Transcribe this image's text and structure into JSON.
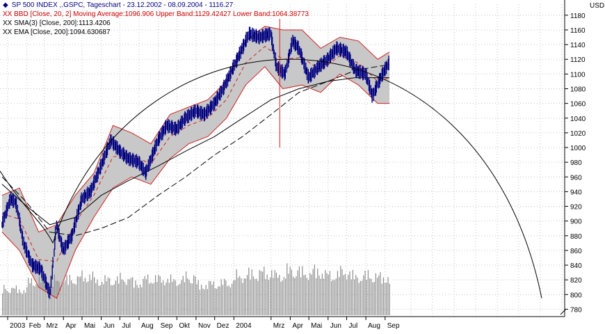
{
  "legend": [
    {
      "mark": "◆",
      "text": "SP 500 INDEX ,.GSPC, Tageschart - 23.12.2002 - 08.09.2004 - 1116.27"
    },
    {
      "mark": "XX",
      "text": "BBD [Close, 20, 2] Moving Average:1096.906 Upper Band:1129.42427 Lower Band:1064.38773"
    },
    {
      "mark": "XX",
      "text": "SMA(3) [Close, 200]:1113.4206"
    },
    {
      "mark": "XX",
      "text": "EMA [Close, 200]:1094.630687"
    }
  ],
  "currency": "USD",
  "colors": {
    "price": "#000080",
    "bands": "#d02020",
    "band_fill": "#c8c8c8",
    "volume": "#8c8c8c",
    "avg": "#000000",
    "grid": "#c0c0c0"
  },
  "chart_data": {
    "type": "line",
    "title": "SP 500 INDEX ,.GSPC, Tageschart - 23.12.2002 - 08.09.2004 - 1116.27",
    "ylabel": "USD",
    "ylim": [
      770,
      1195
    ],
    "yticks": [
      780,
      800,
      820,
      840,
      860,
      880,
      900,
      920,
      940,
      960,
      980,
      1000,
      1020,
      1040,
      1060,
      1080,
      1100,
      1120,
      1140,
      1160,
      1180
    ],
    "x_labels": [
      "2003",
      "Feb",
      "Mrz",
      "Apr",
      "Mai",
      "Jun",
      "Jul",
      "Aug",
      "Sep",
      "Okt",
      "Nov",
      "Dez",
      "2004",
      "Mrz",
      "Apr",
      "Mai",
      "Jun",
      "Jul",
      "Aug",
      "Sep"
    ],
    "x_range": [
      "2002-12-23",
      "2004-09-08"
    ],
    "grid": true,
    "series": [
      {
        "name": "SP 500 INDEX ,.GSPC",
        "dates": [
          "2002-12-23",
          "2003-01-06",
          "2003-01-15",
          "2003-01-27",
          "2003-02-10",
          "2003-02-24",
          "2003-03-11",
          "2003-03-21",
          "2003-04-01",
          "2003-04-15",
          "2003-05-01",
          "2003-05-15",
          "2003-06-01",
          "2003-06-17",
          "2003-07-01",
          "2003-07-15",
          "2003-08-01",
          "2003-08-12",
          "2003-09-01",
          "2003-09-15",
          "2003-10-01",
          "2003-10-15",
          "2003-11-01",
          "2003-11-15",
          "2003-12-01",
          "2003-12-15",
          "2004-01-01",
          "2004-01-15",
          "2004-01-26",
          "2004-02-11",
          "2004-03-01",
          "2004-03-10",
          "2004-03-24",
          "2004-04-05",
          "2004-04-15",
          "2004-05-01",
          "2004-05-17",
          "2004-06-01",
          "2004-06-15",
          "2004-07-01",
          "2004-07-15",
          "2004-08-01",
          "2004-08-12",
          "2004-08-25",
          "2004-09-08"
        ],
        "values": [
          895,
          930,
          925,
          870,
          840,
          835,
          800,
          895,
          860,
          880,
          930,
          940,
          975,
          1010,
          995,
          985,
          980,
          965,
          1010,
          1030,
          1025,
          1040,
          1050,
          1045,
          1060,
          1080,
          1110,
          1135,
          1155,
          1150,
          1155,
          1110,
          1100,
          1145,
          1135,
          1095,
          1110,
          1120,
          1135,
          1130,
          1105,
          1100,
          1070,
          1095,
          1116
        ]
      },
      {
        "name": "Upper Band",
        "dates": [
          "2002-12-23",
          "2003-01-20",
          "2003-02-20",
          "2003-03-21",
          "2003-04-20",
          "2003-05-20",
          "2003-06-20",
          "2003-07-20",
          "2003-08-20",
          "2003-09-20",
          "2003-10-20",
          "2003-11-20",
          "2003-12-20",
          "2004-01-20",
          "2004-02-20",
          "2004-03-20",
          "2004-04-20",
          "2004-05-20",
          "2004-06-20",
          "2004-07-20",
          "2004-08-20",
          "2004-09-08"
        ],
        "values": [
          935,
          945,
          885,
          895,
          935,
          965,
          1030,
          1020,
          1005,
          1045,
          1055,
          1065,
          1090,
          1145,
          1165,
          1160,
          1160,
          1135,
          1150,
          1145,
          1120,
          1130
        ]
      },
      {
        "name": "Lower Band",
        "dates": [
          "2002-12-23",
          "2003-01-20",
          "2003-02-20",
          "2003-03-21",
          "2003-04-20",
          "2003-05-20",
          "2003-06-20",
          "2003-07-20",
          "2003-08-20",
          "2003-09-20",
          "2003-10-20",
          "2003-11-20",
          "2003-12-20",
          "2004-01-20",
          "2004-02-20",
          "2004-03-20",
          "2004-04-20",
          "2004-05-20",
          "2004-06-20",
          "2004-07-20",
          "2004-08-20",
          "2004-09-08"
        ],
        "values": [
          885,
          860,
          810,
          795,
          860,
          905,
          945,
          960,
          950,
          985,
          1005,
          1015,
          1040,
          1085,
          1110,
          1080,
          1085,
          1075,
          1100,
          1085,
          1060,
          1060
        ]
      },
      {
        "name": "SMA(3) [Close, 200]",
        "dates": [
          "2002-12-23",
          "2003-02-01",
          "2003-03-10",
          "2003-04-20",
          "2003-06-01",
          "2003-07-15",
          "2003-09-01",
          "2003-10-15",
          "2003-12-01",
          "2004-01-15",
          "2004-03-01",
          "2004-04-15",
          "2004-06-01",
          "2004-07-15",
          "2004-09-08"
        ],
        "values": [
          960,
          925,
          885,
          880,
          890,
          905,
          935,
          960,
          990,
          1015,
          1045,
          1075,
          1090,
          1105,
          1113
        ]
      },
      {
        "name": "EMA [Close, 200]",
        "dates": [
          "2002-12-23",
          "2003-02-01",
          "2003-03-10",
          "2003-04-20",
          "2003-06-01",
          "2003-07-15",
          "2003-09-01",
          "2003-10-15",
          "2003-12-01",
          "2004-01-15",
          "2004-03-01",
          "2004-04-15",
          "2004-06-01",
          "2004-07-15",
          "2004-09-08"
        ],
        "values": [
          950,
          920,
          895,
          905,
          935,
          955,
          975,
          995,
          1015,
          1040,
          1065,
          1080,
          1090,
          1095,
          1095
        ]
      }
    ],
    "volume_relative": [
      0.43,
      0.41,
      0.55,
      0.53,
      0.56,
      0.59,
      0.63,
      0.56,
      0.57,
      0.59,
      0.53,
      0.59,
      0.58,
      0.56,
      0.62,
      0.49,
      0.51,
      0.53,
      0.63,
      0.67,
      0.69,
      0.64,
      0.72,
      0.68,
      0.71,
      0.65,
      0.7,
      0.62,
      0.64,
      0.61
    ],
    "annotations": {
      "vertical_line_date": "2004-03-15",
      "arc_end_value": 795
    }
  }
}
